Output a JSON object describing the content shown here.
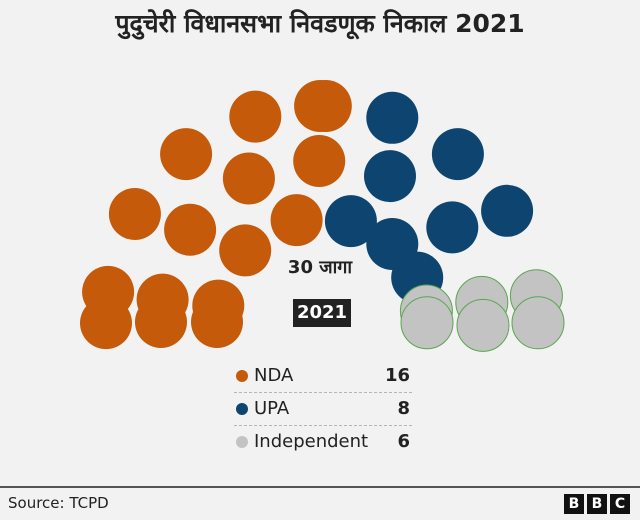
{
  "chart_data": {
    "type": "parliament",
    "title": "पुदुचेरी विधानसभा निवडणूक निकाल 2021",
    "total_seats_label": "30 जागा",
    "year_label": "2021",
    "total_seats": 30,
    "series": [
      {
        "name": "NDA",
        "seats": 16,
        "color": "#c45a0a"
      },
      {
        "name": "UPA",
        "seats": 8,
        "color": "#0e4570"
      },
      {
        "name": "Independent",
        "seats": 6,
        "color": "#c3c3c3"
      }
    ]
  },
  "legend": [
    {
      "label": "NDA",
      "value": "16"
    },
    {
      "label": "UPA",
      "value": "8"
    },
    {
      "label": "Independent",
      "value": "6"
    }
  ],
  "footer": {
    "source": "Source: TCPD",
    "logo": [
      "B",
      "B",
      "C"
    ]
  }
}
